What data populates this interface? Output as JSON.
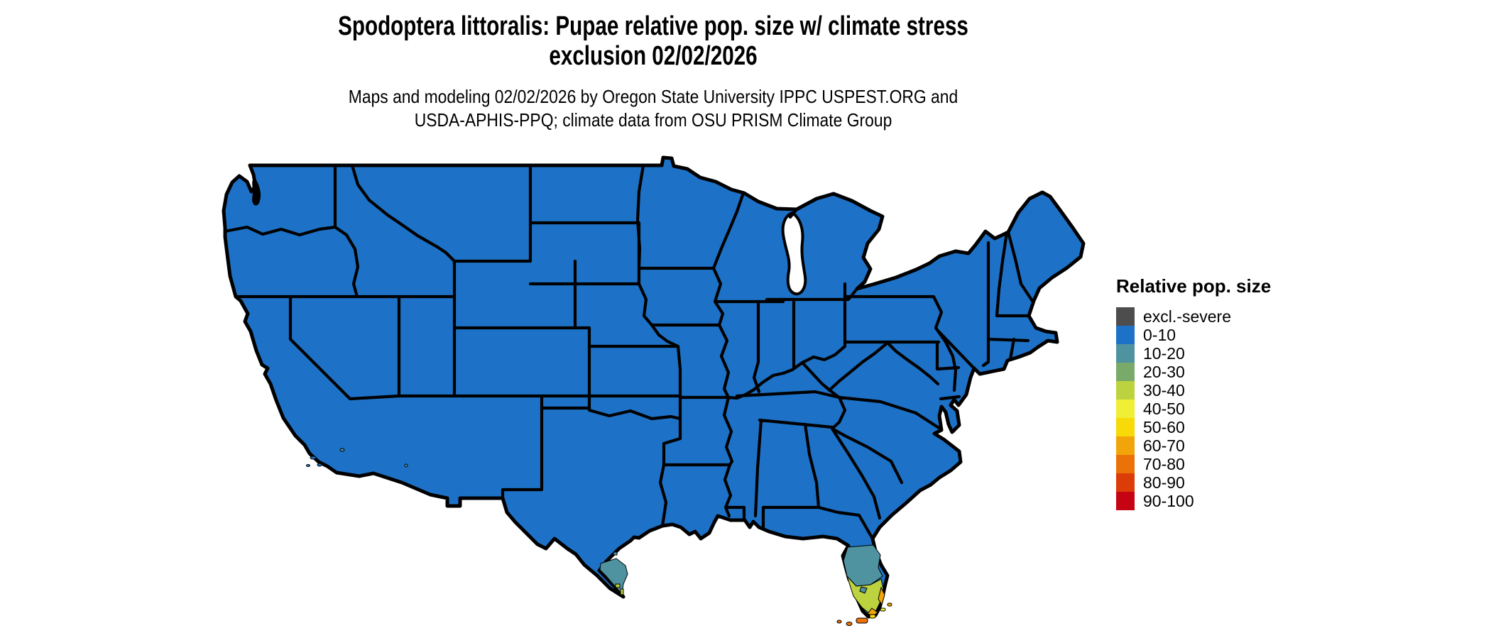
{
  "figure": {
    "title_line1": "Spodoptera littoralis: Pupae relative pop. size w/ climate stress",
    "title_line2": "exclusion 02/02/2026",
    "subtitle_line1": "Maps and modeling 02/02/2026 by Oregon State University IPPC USPEST.ORG and",
    "subtitle_line2": "USDA-APHIS-PPQ; climate data from OSU PRISM Climate Group"
  },
  "legend": {
    "title": "Relative pop. size",
    "entries": [
      {
        "label": "excl.-severe",
        "color": "#4d4d4d"
      },
      {
        "label": "0-10",
        "color": "#1d72c7"
      },
      {
        "label": "10-20",
        "color": "#4f93a0"
      },
      {
        "label": "20-30",
        "color": "#7aaa6a"
      },
      {
        "label": "30-40",
        "color": "#bcd23e"
      },
      {
        "label": "40-50",
        "color": "#f0ee35"
      },
      {
        "label": "50-60",
        "color": "#f7da08"
      },
      {
        "label": "60-70",
        "color": "#f2a50a"
      },
      {
        "label": "70-80",
        "color": "#ea7209"
      },
      {
        "label": "80-90",
        "color": "#dc3c08"
      },
      {
        "label": "90-100",
        "color": "#c50313"
      }
    ]
  },
  "map": {
    "colors": {
      "land": "#1d72c7",
      "border": "#000000",
      "water": "#ffffff",
      "bin_10_20": "#4f93a0",
      "bin_30_40": "#bcd23e",
      "bin_40_50": "#f0ee35",
      "bin_50_60": "#f7da08",
      "bin_60_70": "#f2a50a",
      "bin_70_80": "#ea7209"
    }
  },
  "chart_data": {
    "type": "choropleth_map",
    "title": "Spodoptera littoralis: Pupae relative pop. size w/ climate stress exclusion 02/02/2026",
    "legend_title": "Relative pop. size",
    "legend_bins": [
      "excl.-severe",
      "0-10",
      "10-20",
      "20-30",
      "30-40",
      "40-50",
      "50-60",
      "60-70",
      "70-80",
      "80-90",
      "90-100"
    ],
    "legend_colors": [
      "#4d4d4d",
      "#1d72c7",
      "#4f93a0",
      "#7aaa6a",
      "#bcd23e",
      "#f0ee35",
      "#f7da08",
      "#f2a50a",
      "#ea7209",
      "#dc3c08",
      "#c50313"
    ],
    "legend_position": "right",
    "observations": [
      {
        "area": "Continental US (nearly all states)",
        "value_bin": "0-10"
      },
      {
        "area": "Central-south Florida peninsula band",
        "value_bin": "10-20"
      },
      {
        "area": "Southern Florida interior",
        "value_bin": "30-40"
      },
      {
        "area": "Southeast Florida coastal edge and tip",
        "value_bin": "60-70"
      },
      {
        "area": "Florida Keys",
        "value_bin": "40-70"
      },
      {
        "area": "Lower Rio Grande Valley (south Texas tip)",
        "value_bin": "10-20"
      },
      {
        "area": "South Texas tip specks",
        "value_bin": "30-40"
      },
      {
        "area": "California Channel Islands specks",
        "value_bin": "0-20"
      }
    ]
  }
}
